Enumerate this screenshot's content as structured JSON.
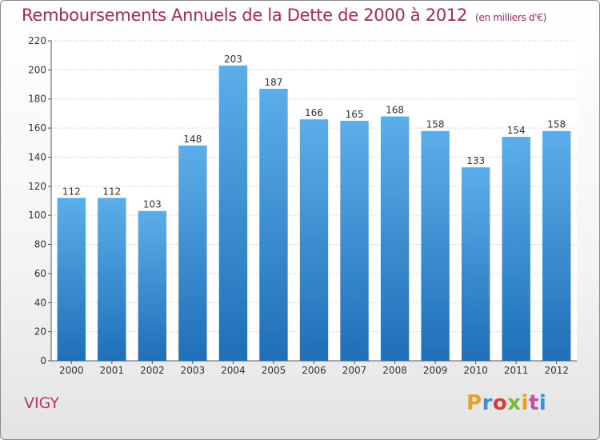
{
  "chart_data": {
    "type": "bar",
    "title": "Remboursements Annuels de la Dette de 2000 à 2012",
    "unit_label": "(en milliers d'€)",
    "xlabel": "",
    "ylabel": "",
    "categories": [
      "2000",
      "2001",
      "2002",
      "2003",
      "2004",
      "2005",
      "2006",
      "2007",
      "2008",
      "2009",
      "2010",
      "2011",
      "2012"
    ],
    "values": [
      112,
      112,
      103,
      148,
      203,
      187,
      166,
      165,
      168,
      158,
      133,
      154,
      158
    ],
    "ylim": [
      0,
      220
    ],
    "yticks": [
      0,
      20,
      40,
      60,
      80,
      100,
      120,
      140,
      160,
      180,
      200,
      220
    ],
    "grid": true,
    "legend": "none",
    "colors": {
      "bar_top": "#5caee9",
      "bar_bottom": "#1e6fb8",
      "title": "#a8285b"
    }
  },
  "footer": {
    "commune": "VIGY",
    "logo_text": "Proxiti",
    "logo_colors": [
      "#e8a21f",
      "#3b8fd6",
      "#d33f3f",
      "#7bb83a",
      "#e8a21f",
      "#c84fa6",
      "#3b8fd6"
    ]
  }
}
